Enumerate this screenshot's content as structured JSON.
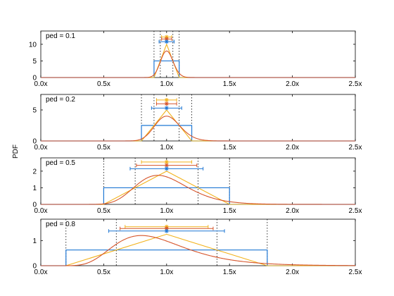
{
  "figure": {
    "ylabel": "PDF",
    "colors": {
      "uniform": "#1f77d4",
      "triangular": "#f2b21b",
      "lognormal": "#d6552b",
      "axis": "#000000",
      "ref_line": "#000000"
    }
  },
  "chart_data": [
    {
      "type": "line",
      "label": "ped = 0.1",
      "ped": 0.1,
      "xlim": [
        0,
        2.5
      ],
      "ylim": [
        0,
        14
      ],
      "xticks": [
        "0.0x",
        "0.5x",
        "1.0x",
        "1.5x",
        "2.0x",
        "2.5x"
      ],
      "yticks": [
        0,
        5,
        10
      ],
      "grid": false,
      "ref_lines": [
        0.9,
        0.95,
        1.05,
        1.1
      ],
      "uniform": {
        "low": 0.9,
        "high": 1.1,
        "height": 5.0
      },
      "triangular": {
        "low": 0.9,
        "mode": 1.0,
        "high": 1.1,
        "peak": 10.0
      },
      "lognormal": {
        "mode": 1.0,
        "peak": 8.0,
        "sigma": 0.05
      },
      "errorbars": [
        {
          "series": "triangular",
          "y": 12.2,
          "center": 1.0,
          "low": 0.96,
          "high": 1.04
        },
        {
          "series": "lognormal",
          "y": 11.6,
          "center": 1.0,
          "low": 0.96,
          "high": 1.04
        },
        {
          "series": "uniform",
          "y": 10.8,
          "center": 1.0,
          "low": 0.94,
          "high": 1.06
        }
      ]
    },
    {
      "type": "line",
      "label": "ped = 0.2",
      "ped": 0.2,
      "xlim": [
        0,
        2.5
      ],
      "ylim": [
        0,
        7.5
      ],
      "xticks": [
        "0.0x",
        "0.5x",
        "1.0x",
        "1.5x",
        "2.0x",
        "2.5x"
      ],
      "yticks": [
        0,
        5
      ],
      "grid": false,
      "ref_lines": [
        0.8,
        0.9,
        1.1,
        1.2
      ],
      "uniform": {
        "low": 0.8,
        "high": 1.2,
        "height": 2.5
      },
      "triangular": {
        "low": 0.8,
        "mode": 1.0,
        "high": 1.2,
        "peak": 5.0
      },
      "lognormal": {
        "mode": 1.0,
        "peak": 4.0,
        "sigma": 0.1
      },
      "errorbars": [
        {
          "series": "triangular",
          "y": 6.6,
          "center": 1.0,
          "low": 0.92,
          "high": 1.08
        },
        {
          "series": "lognormal",
          "y": 6.0,
          "center": 1.0,
          "low": 0.92,
          "high": 1.08
        },
        {
          "series": "uniform",
          "y": 5.3,
          "center": 1.0,
          "low": 0.88,
          "high": 1.12
        }
      ]
    },
    {
      "type": "line",
      "label": "ped = 0.5",
      "ped": 0.5,
      "xlim": [
        0,
        2.5
      ],
      "ylim": [
        0,
        2.8
      ],
      "xticks": [
        "0.0x",
        "0.5x",
        "1.0x",
        "1.5x",
        "2.0x",
        "2.5x"
      ],
      "yticks": [
        0,
        1,
        2
      ],
      "grid": false,
      "ref_lines": [
        0.5,
        0.75,
        1.25,
        1.5
      ],
      "uniform": {
        "low": 0.5,
        "high": 1.5,
        "height": 1.0
      },
      "triangular": {
        "low": 0.5,
        "mode": 1.0,
        "high": 1.5,
        "peak": 2.0
      },
      "lognormal": {
        "mode": 0.93,
        "peak": 1.75,
        "sigma": 0.22
      },
      "errorbars": [
        {
          "series": "triangular",
          "y": 2.55,
          "center": 1.0,
          "low": 0.8,
          "high": 1.2
        },
        {
          "series": "lognormal",
          "y": 2.35,
          "center": 1.0,
          "low": 0.76,
          "high": 1.24
        },
        {
          "series": "uniform",
          "y": 2.15,
          "center": 1.0,
          "low": 0.71,
          "high": 1.29
        }
      ]
    },
    {
      "type": "line",
      "label": "ped = 0.8",
      "ped": 0.8,
      "xlim": [
        0,
        2.5
      ],
      "ylim": [
        0,
        1.85
      ],
      "xticks": [
        "0.0x",
        "0.5x",
        "1.0x",
        "1.5x",
        "2.0x",
        "2.5x"
      ],
      "yticks": [
        0,
        1
      ],
      "grid": false,
      "ref_lines": [
        0.2,
        0.6,
        1.4,
        1.8
      ],
      "uniform": {
        "low": 0.2,
        "high": 1.8,
        "height": 0.625
      },
      "triangular": {
        "low": 0.2,
        "mode": 1.0,
        "high": 1.8,
        "peak": 1.25
      },
      "lognormal": {
        "mode": 0.8,
        "peak": 1.2,
        "sigma": 0.35
      },
      "errorbars": [
        {
          "series": "triangular",
          "y": 1.55,
          "center": 1.0,
          "low": 0.67,
          "high": 1.33
        },
        {
          "series": "lognormal",
          "y": 1.48,
          "center": 1.0,
          "low": 0.63,
          "high": 1.37
        },
        {
          "series": "uniform",
          "y": 1.38,
          "center": 1.0,
          "low": 0.54,
          "high": 1.46
        }
      ]
    }
  ]
}
